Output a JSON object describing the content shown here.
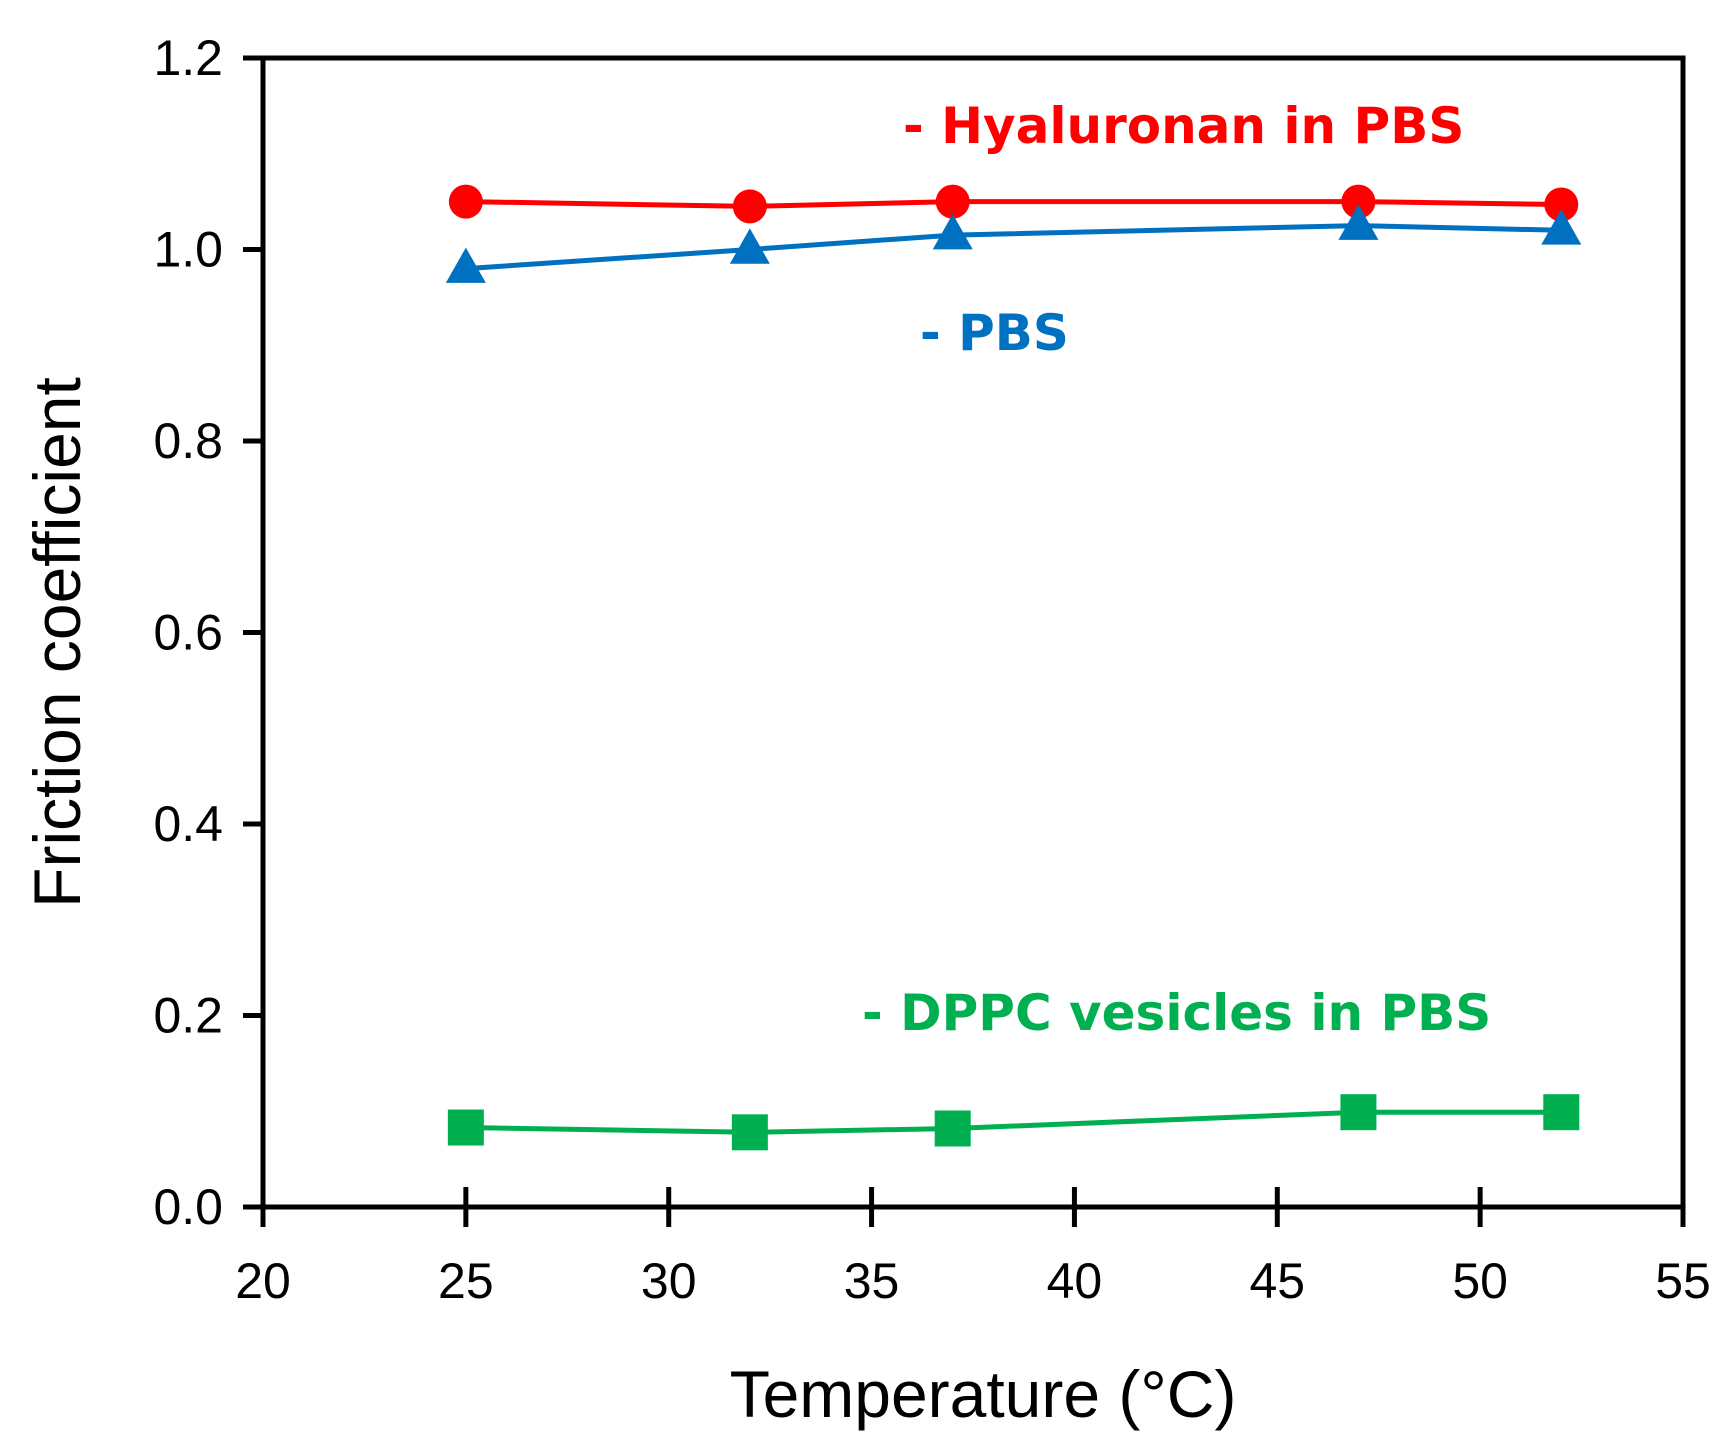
{
  "chart_data": {
    "type": "line",
    "title": "",
    "xlabel": "Temperature (°C)",
    "ylabel": "Friction coefficient",
    "xlim": [
      20,
      55
    ],
    "ylim": [
      0,
      1.2
    ],
    "xticks": [
      20,
      25,
      30,
      35,
      40,
      45,
      50,
      55
    ],
    "xtick_labels": [
      "20",
      "25",
      "30",
      "35",
      "40",
      "45",
      "50",
      "55"
    ],
    "yticks": [
      0,
      0.2,
      0.4,
      0.6,
      0.8,
      1.0,
      1.2
    ],
    "ytick_labels": [
      "0.0",
      "0.2",
      "0.4",
      "0.6",
      "0.8",
      "1.0",
      "1.2"
    ],
    "grid": false,
    "series": [
      {
        "name": "Hyaluronan in PBS",
        "legend_text": "- Hyaluronan in PBS",
        "color": "#ff0000",
        "marker": "circle",
        "x": [
          25,
          32,
          37,
          47,
          52
        ],
        "y": [
          1.05,
          1.045,
          1.05,
          1.05,
          1.047
        ]
      },
      {
        "name": "PBS",
        "legend_text": "-   PBS",
        "color": "#0070c0",
        "marker": "triangle",
        "x": [
          25,
          32,
          37,
          47,
          52
        ],
        "y": [
          0.98,
          1.0,
          1.015,
          1.025,
          1.02
        ]
      },
      {
        "name": "DPPC vesicles in PBS",
        "legend_text": "-   DPPC vesicles in PBS",
        "color": "#00b050",
        "marker": "square",
        "x": [
          25,
          32,
          37,
          47,
          52
        ],
        "y": [
          0.083,
          0.078,
          0.082,
          0.099,
          0.099
        ]
      }
    ]
  }
}
